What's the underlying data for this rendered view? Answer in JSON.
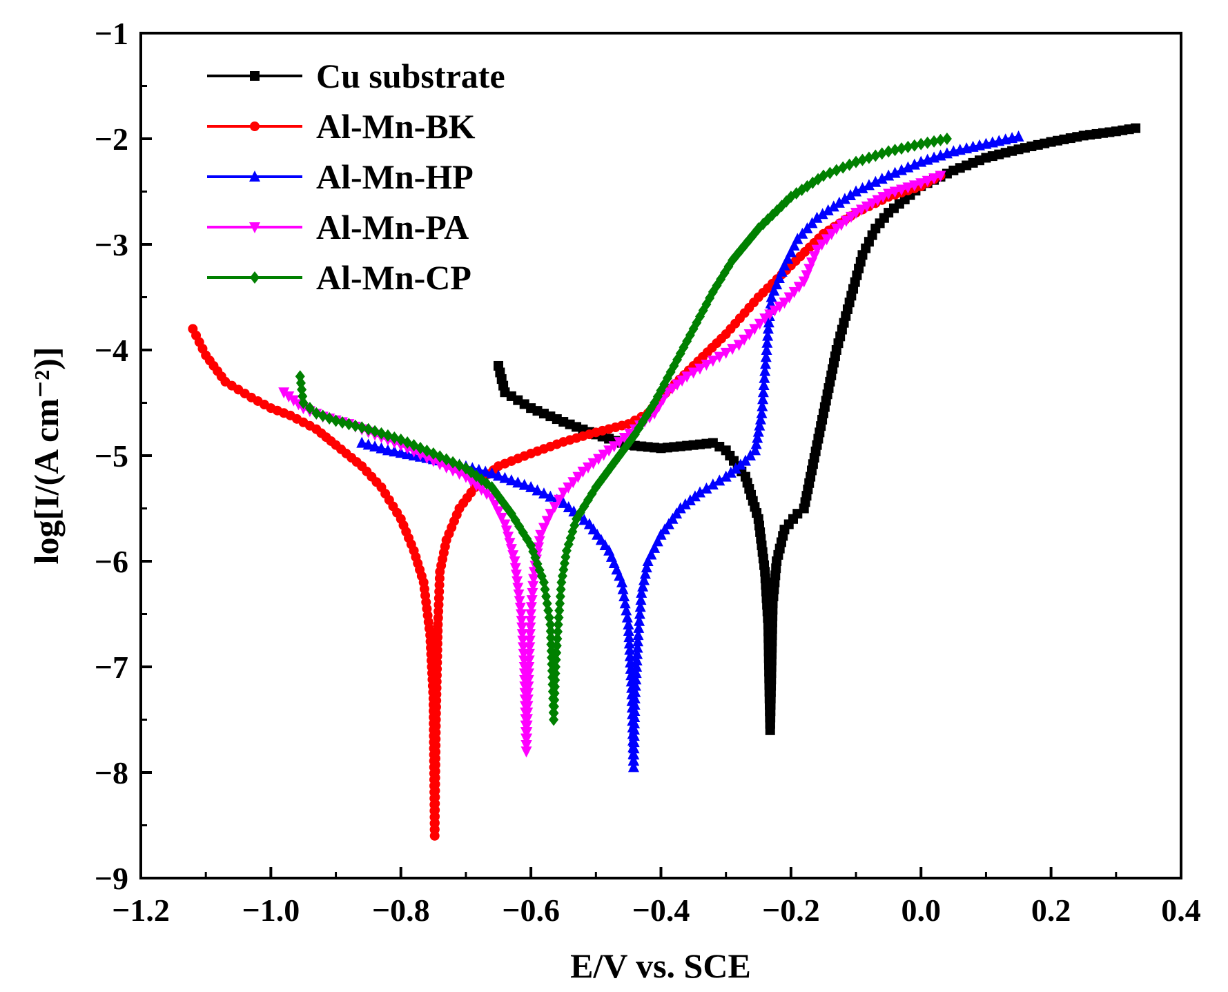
{
  "chart_data": {
    "type": "line",
    "title": "",
    "xlabel": "E/V vs. SCE",
    "ylabel": "log[I/(A cm⁻²)]",
    "xlim": [
      -1.2,
      0.4
    ],
    "ylim": [
      -9,
      -1
    ],
    "xticks": [
      -1.2,
      -1.0,
      -0.8,
      -0.6,
      -0.4,
      -0.2,
      0.0,
      0.2,
      0.4
    ],
    "xtick_labels": [
      "−1.2",
      "−1.0",
      "−0.8",
      "−0.6",
      "−0.4",
      "−0.2",
      "0.0",
      "0.2",
      "0.4"
    ],
    "yticks": [
      -9,
      -8,
      -7,
      -6,
      -5,
      -4,
      -3,
      -2,
      -1
    ],
    "ytick_labels": [
      "−9",
      "−8",
      "−7",
      "−6",
      "−5",
      "−4",
      "−3",
      "−2",
      "−1"
    ],
    "grid": false,
    "legend_position": "top-left",
    "series": [
      {
        "name": "Cu substrate",
        "color": "#000000",
        "marker": "square",
        "points": [
          [
            -0.65,
            -4.15
          ],
          [
            -0.64,
            -4.4
          ],
          [
            -0.6,
            -4.55
          ],
          [
            -0.55,
            -4.68
          ],
          [
            -0.5,
            -4.8
          ],
          [
            -0.45,
            -4.9
          ],
          [
            -0.4,
            -4.93
          ],
          [
            -0.35,
            -4.9
          ],
          [
            -0.32,
            -4.88
          ],
          [
            -0.3,
            -4.95
          ],
          [
            -0.27,
            -5.2
          ],
          [
            -0.25,
            -5.6
          ],
          [
            -0.24,
            -6.1
          ],
          [
            -0.235,
            -6.6
          ],
          [
            -0.233,
            -7.3
          ],
          [
            -0.232,
            -7.6
          ],
          [
            -0.23,
            -7.0
          ],
          [
            -0.228,
            -6.4
          ],
          [
            -0.222,
            -6.0
          ],
          [
            -0.21,
            -5.7
          ],
          [
            -0.19,
            -5.55
          ],
          [
            -0.18,
            -5.5
          ],
          [
            -0.16,
            -4.9
          ],
          [
            -0.15,
            -4.6
          ],
          [
            -0.13,
            -4.0
          ],
          [
            -0.11,
            -3.55
          ],
          [
            -0.09,
            -3.1
          ],
          [
            -0.07,
            -2.85
          ],
          [
            -0.05,
            -2.7
          ],
          [
            0.0,
            -2.45
          ],
          [
            0.05,
            -2.3
          ],
          [
            0.1,
            -2.18
          ],
          [
            0.15,
            -2.1
          ],
          [
            0.2,
            -2.03
          ],
          [
            0.25,
            -1.97
          ],
          [
            0.3,
            -1.93
          ],
          [
            0.33,
            -1.9
          ]
        ]
      },
      {
        "name": "Al-Mn-BK",
        "color": "#ff0000",
        "marker": "circle",
        "points": [
          [
            -1.12,
            -3.8
          ],
          [
            -1.1,
            -4.05
          ],
          [
            -1.07,
            -4.3
          ],
          [
            -1.03,
            -4.45
          ],
          [
            -1.0,
            -4.55
          ],
          [
            -0.97,
            -4.62
          ],
          [
            -0.93,
            -4.75
          ],
          [
            -0.9,
            -4.9
          ],
          [
            -0.86,
            -5.1
          ],
          [
            -0.83,
            -5.3
          ],
          [
            -0.8,
            -5.6
          ],
          [
            -0.78,
            -5.9
          ],
          [
            -0.765,
            -6.2
          ],
          [
            -0.755,
            -6.7
          ],
          [
            -0.75,
            -7.3
          ],
          [
            -0.748,
            -8.6
          ],
          [
            -0.746,
            -7.5
          ],
          [
            -0.743,
            -6.6
          ],
          [
            -0.74,
            -6.1
          ],
          [
            -0.73,
            -5.8
          ],
          [
            -0.71,
            -5.5
          ],
          [
            -0.68,
            -5.25
          ],
          [
            -0.65,
            -5.1
          ],
          [
            -0.6,
            -4.98
          ],
          [
            -0.55,
            -4.87
          ],
          [
            -0.5,
            -4.78
          ],
          [
            -0.45,
            -4.7
          ],
          [
            -0.42,
            -4.6
          ],
          [
            -0.4,
            -4.45
          ],
          [
            -0.35,
            -4.15
          ],
          [
            -0.3,
            -3.85
          ],
          [
            -0.25,
            -3.5
          ],
          [
            -0.2,
            -3.2
          ],
          [
            -0.15,
            -2.9
          ],
          [
            -0.1,
            -2.7
          ],
          [
            -0.05,
            -2.55
          ],
          [
            0.0,
            -2.45
          ],
          [
            0.03,
            -2.35
          ]
        ]
      },
      {
        "name": "Al-Mn-HP",
        "color": "#0000ff",
        "marker": "triangle-up",
        "points": [
          [
            -0.86,
            -4.88
          ],
          [
            -0.82,
            -4.95
          ],
          [
            -0.78,
            -5.0
          ],
          [
            -0.72,
            -5.07
          ],
          [
            -0.66,
            -5.17
          ],
          [
            -0.6,
            -5.3
          ],
          [
            -0.55,
            -5.45
          ],
          [
            -0.51,
            -5.65
          ],
          [
            -0.48,
            -5.9
          ],
          [
            -0.46,
            -6.2
          ],
          [
            -0.45,
            -6.6
          ],
          [
            -0.445,
            -7.2
          ],
          [
            -0.442,
            -7.95
          ],
          [
            -0.44,
            -7.3
          ],
          [
            -0.435,
            -6.7
          ],
          [
            -0.43,
            -6.3
          ],
          [
            -0.42,
            -6.0
          ],
          [
            -0.4,
            -5.75
          ],
          [
            -0.37,
            -5.5
          ],
          [
            -0.34,
            -5.35
          ],
          [
            -0.3,
            -5.2
          ],
          [
            -0.27,
            -5.05
          ],
          [
            -0.255,
            -4.95
          ],
          [
            -0.245,
            -4.6
          ],
          [
            -0.24,
            -4.2
          ],
          [
            -0.235,
            -3.8
          ],
          [
            -0.23,
            -3.5
          ],
          [
            -0.21,
            -3.2
          ],
          [
            -0.19,
            -2.95
          ],
          [
            -0.16,
            -2.75
          ],
          [
            -0.1,
            -2.5
          ],
          [
            -0.05,
            -2.35
          ],
          [
            0.0,
            -2.22
          ],
          [
            0.05,
            -2.12
          ],
          [
            0.1,
            -2.05
          ],
          [
            0.15,
            -1.98
          ]
        ]
      },
      {
        "name": "Al-Mn-PA",
        "color": "#ff00ff",
        "marker": "triangle-down",
        "points": [
          [
            -0.98,
            -4.4
          ],
          [
            -0.95,
            -4.55
          ],
          [
            -0.92,
            -4.63
          ],
          [
            -0.88,
            -4.7
          ],
          [
            -0.84,
            -4.8
          ],
          [
            -0.8,
            -4.9
          ],
          [
            -0.75,
            -5.05
          ],
          [
            -0.7,
            -5.2
          ],
          [
            -0.66,
            -5.4
          ],
          [
            -0.64,
            -5.65
          ],
          [
            -0.625,
            -6.0
          ],
          [
            -0.615,
            -6.5
          ],
          [
            -0.61,
            -7.0
          ],
          [
            -0.607,
            -7.8
          ],
          [
            -0.603,
            -7.0
          ],
          [
            -0.6,
            -6.5
          ],
          [
            -0.595,
            -6.1
          ],
          [
            -0.585,
            -5.75
          ],
          [
            -0.57,
            -5.55
          ],
          [
            -0.55,
            -5.35
          ],
          [
            -0.52,
            -5.15
          ],
          [
            -0.48,
            -4.95
          ],
          [
            -0.44,
            -4.75
          ],
          [
            -0.41,
            -4.6
          ],
          [
            -0.39,
            -4.4
          ],
          [
            -0.36,
            -4.25
          ],
          [
            -0.32,
            -4.1
          ],
          [
            -0.28,
            -3.95
          ],
          [
            -0.24,
            -3.7
          ],
          [
            -0.21,
            -3.55
          ],
          [
            -0.18,
            -3.35
          ],
          [
            -0.16,
            -3.05
          ],
          [
            -0.13,
            -2.85
          ],
          [
            -0.1,
            -2.7
          ],
          [
            -0.05,
            -2.52
          ],
          [
            0.0,
            -2.42
          ],
          [
            0.03,
            -2.35
          ]
        ]
      },
      {
        "name": "Al-Mn-CP",
        "color": "#008000",
        "marker": "diamond",
        "points": [
          [
            -0.955,
            -4.25
          ],
          [
            -0.95,
            -4.5
          ],
          [
            -0.93,
            -4.6
          ],
          [
            -0.9,
            -4.67
          ],
          [
            -0.85,
            -4.75
          ],
          [
            -0.8,
            -4.85
          ],
          [
            -0.75,
            -4.98
          ],
          [
            -0.7,
            -5.12
          ],
          [
            -0.66,
            -5.3
          ],
          [
            -0.63,
            -5.55
          ],
          [
            -0.6,
            -5.85
          ],
          [
            -0.58,
            -6.2
          ],
          [
            -0.57,
            -6.6
          ],
          [
            -0.567,
            -7.1
          ],
          [
            -0.565,
            -7.5
          ],
          [
            -0.562,
            -7.0
          ],
          [
            -0.558,
            -6.6
          ],
          [
            -0.553,
            -6.2
          ],
          [
            -0.545,
            -5.9
          ],
          [
            -0.53,
            -5.6
          ],
          [
            -0.5,
            -5.3
          ],
          [
            -0.47,
            -5.05
          ],
          [
            -0.44,
            -4.8
          ],
          [
            -0.41,
            -4.5
          ],
          [
            -0.38,
            -4.15
          ],
          [
            -0.35,
            -3.8
          ],
          [
            -0.32,
            -3.45
          ],
          [
            -0.29,
            -3.15
          ],
          [
            -0.25,
            -2.85
          ],
          [
            -0.2,
            -2.55
          ],
          [
            -0.15,
            -2.35
          ],
          [
            -0.1,
            -2.22
          ],
          [
            -0.05,
            -2.12
          ],
          [
            0.0,
            -2.05
          ],
          [
            0.04,
            -2.0
          ]
        ]
      }
    ]
  }
}
